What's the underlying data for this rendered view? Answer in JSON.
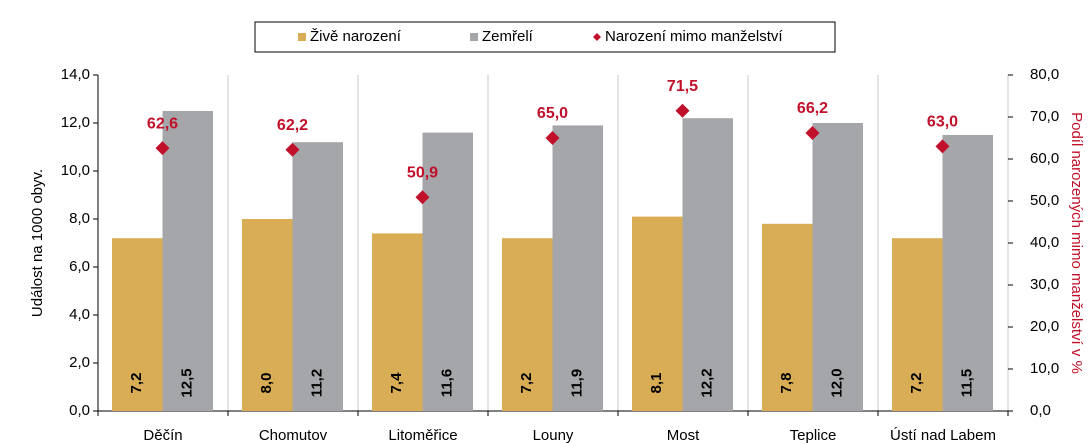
{
  "chart_data": {
    "type": "bar",
    "categories": [
      "Děčín",
      "Chomutov",
      "Litoměřice",
      "Louny",
      "Most",
      "Teplice",
      "Ústí nad Labem"
    ],
    "series": [
      {
        "name": "Živě narození",
        "color": "#d9ad55",
        "values": [
          7.2,
          8.0,
          7.4,
          7.2,
          8.1,
          7.8,
          7.2
        ],
        "value_labels": [
          "7,2",
          "8,0",
          "7,4",
          "7,2",
          "8,1",
          "7,8",
          "7,2"
        ]
      },
      {
        "name": "Zemřelí",
        "color": "#a5a6aa",
        "values": [
          12.5,
          11.2,
          11.6,
          11.9,
          12.2,
          12.0,
          11.5
        ],
        "value_labels": [
          "12,5",
          "11,2",
          "11,6",
          "11,9",
          "12,2",
          "12,0",
          "11,5"
        ]
      },
      {
        "name": "Narození mimo manželství",
        "color": "#c0102a",
        "axis": "y2",
        "marker": "diamond",
        "values": [
          62.6,
          62.2,
          50.9,
          65.0,
          71.5,
          66.2,
          63.0
        ],
        "value_labels": [
          "62,6",
          "62,2",
          "50,9",
          "65,0",
          "71,5",
          "66,2",
          "63,0"
        ]
      }
    ],
    "ylabel": "Událost na 1000 obyv.",
    "y2label": "Podíl narozených mimo manželství v %",
    "ylim": [
      0,
      14
    ],
    "yticks": [
      {
        "value": 0,
        "label": "0,0"
      },
      {
        "value": 2,
        "label": "2,0"
      },
      {
        "value": 4,
        "label": "4,0"
      },
      {
        "value": 6,
        "label": "6,0"
      },
      {
        "value": 8,
        "label": "8,0"
      },
      {
        "value": 10,
        "label": "10,0"
      },
      {
        "value": 12,
        "label": "12,0"
      },
      {
        "value": 14,
        "label": "14,0"
      }
    ],
    "y2lim": [
      0,
      80
    ],
    "y2ticks": [
      {
        "value": 0,
        "label": "0,0"
      },
      {
        "value": 10,
        "label": "10,0"
      },
      {
        "value": 20,
        "label": "20,0"
      },
      {
        "value": 30,
        "label": "30,0"
      },
      {
        "value": 40,
        "label": "40,0"
      },
      {
        "value": 50,
        "label": "50,0"
      },
      {
        "value": 60,
        "label": "60,0"
      },
      {
        "value": 70,
        "label": "70,0"
      },
      {
        "value": 80,
        "label": "80,0"
      }
    ],
    "legend": "top"
  }
}
